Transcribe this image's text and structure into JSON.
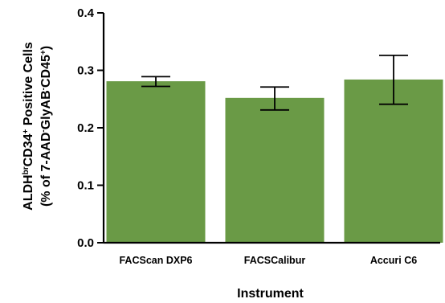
{
  "chart_data": {
    "type": "bar",
    "categories": [
      "FACScan DXP6",
      "FACSCalibur",
      "Accuri C6"
    ],
    "values": [
      0.281,
      0.252,
      0.284
    ],
    "error_low": [
      0.272,
      0.231,
      0.241
    ],
    "error_high": [
      0.289,
      0.271,
      0.326
    ],
    "xlabel": "Instrument",
    "ylabel": {
      "line1": "ALDH",
      "line1_sup_a": "br",
      "line1_mid": "CD34",
      "line1_sup_b": "+",
      "line1_end": " Positive Cells",
      "line2": "(% of 7-AAD",
      "line2_sup_a": "-",
      "line2_mid": "GlyAB",
      "line2_sup_b": "-",
      "line2_mid2": "CD45",
      "line2_sup_c": "+",
      "line2_end": ")"
    },
    "ylim": [
      0,
      0.4
    ],
    "yticks": [
      "0.0",
      "0.1",
      "0.2",
      "0.3",
      "0.4"
    ],
    "ytick_values": [
      0,
      0.1,
      0.2,
      0.3,
      0.4
    ],
    "bar_color": "#6a9a46",
    "grid": false,
    "legend": "none"
  }
}
